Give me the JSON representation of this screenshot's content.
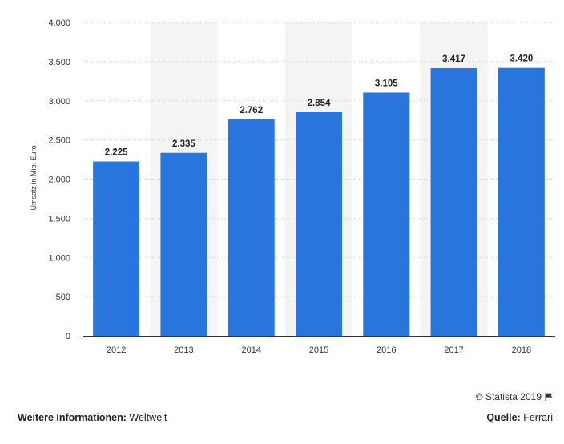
{
  "chart_data": {
    "type": "bar",
    "categories": [
      "2012",
      "2013",
      "2014",
      "2015",
      "2016",
      "2017",
      "2018"
    ],
    "values": [
      2225,
      2335,
      2762,
      2854,
      3105,
      3417,
      3420
    ],
    "value_labels": [
      "2.225",
      "2.335",
      "2.762",
      "2.854",
      "3.105",
      "3.417",
      "3.420"
    ],
    "ylabel": "Umsatz in Mio. Euro",
    "ylim": [
      0,
      4000
    ],
    "yticks": [
      0,
      500,
      1000,
      1500,
      2000,
      2500,
      3000,
      3500,
      4000
    ],
    "ytick_labels": [
      "0",
      "500",
      "1.000",
      "1.500",
      "2.000",
      "2.500",
      "3.000",
      "3.500",
      "4.000"
    ],
    "grid": true,
    "bar_color": "#2876dd",
    "band_color": "#f4f4f4"
  },
  "credit": {
    "text": "© Statista 2019",
    "icon": "flag-icon"
  },
  "footer": {
    "info_label": "Weitere Informationen:",
    "info_value": "Weltweit",
    "source_label": "Quelle:",
    "source_value": "Ferrari"
  }
}
